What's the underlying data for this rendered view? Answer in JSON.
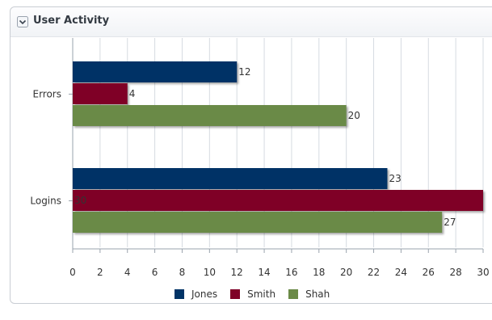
{
  "panel": {
    "title": "User Activity",
    "collapse_icon": "chevron-down-icon"
  },
  "chart_data": {
    "type": "bar",
    "orientation": "horizontal",
    "categories": [
      "Errors",
      "Logins"
    ],
    "series": [
      {
        "name": "Jones",
        "color": "#003366",
        "values": [
          12,
          23
        ]
      },
      {
        "name": "Smith",
        "color": "#7f0027",
        "values": [
          4,
          30
        ]
      },
      {
        "name": "Shah",
        "color": "#6b8a47",
        "values": [
          20,
          27
        ]
      }
    ],
    "x_ticks": [
      0,
      2,
      4,
      6,
      8,
      10,
      12,
      14,
      16,
      18,
      20,
      22,
      24,
      26,
      28,
      30
    ],
    "xlim": [
      0,
      30
    ],
    "grid": true,
    "data_labels": true,
    "legend_position": "bottom"
  }
}
